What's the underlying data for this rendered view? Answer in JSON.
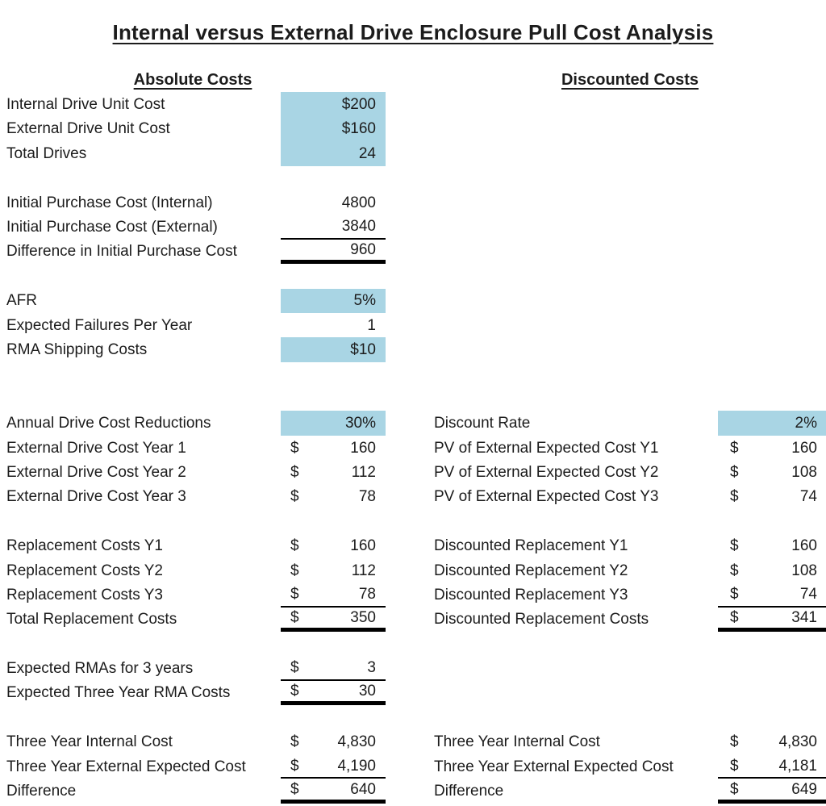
{
  "title": "Internal versus External Drive Enclosure Pull Cost Analysis",
  "sections": {
    "left_header": "Absolute Costs",
    "right_header": "Discounted Costs"
  },
  "currency_symbol": "$",
  "colors": {
    "highlight": "#a9d5e4",
    "border": "#000000",
    "text": "#1c1c1c",
    "background": "#ffffff"
  },
  "rows": [
    {
      "left": {
        "label": "Internal Drive Unit Cost",
        "value": "$200",
        "highlight": true
      }
    },
    {
      "left": {
        "label": "External Drive Unit Cost",
        "value": "$160",
        "highlight": true
      }
    },
    {
      "left": {
        "label": "Total Drives",
        "value": "24",
        "highlight": true
      }
    },
    {
      "blank": true
    },
    {
      "left": {
        "label": "Initial Purchase Cost (Internal)",
        "value": "4800"
      }
    },
    {
      "left": {
        "label": "Initial Purchase Cost (External)",
        "value": "3840",
        "border": "thin"
      }
    },
    {
      "left": {
        "label": "Difference in Initial Purchase Cost",
        "value": "960",
        "border": "thick"
      }
    },
    {
      "blank": true
    },
    {
      "left": {
        "label": "AFR",
        "value": "5%",
        "highlight": true
      }
    },
    {
      "left": {
        "label": "Expected Failures Per Year",
        "value": "1"
      }
    },
    {
      "left": {
        "label": "RMA Shipping Costs",
        "value": "$10",
        "highlight": true
      }
    },
    {
      "blank": true
    },
    {
      "blank": true
    },
    {
      "left": {
        "label": "Annual Drive Cost Reductions",
        "value": "30%",
        "highlight": true
      },
      "right": {
        "label": "Discount Rate",
        "value": "2%",
        "highlight": true
      }
    },
    {
      "left": {
        "label": "External Drive Cost Year 1",
        "value": "160",
        "dollar": true
      },
      "right": {
        "label": "PV of External Expected Cost Y1",
        "value": "160",
        "dollar": true
      }
    },
    {
      "left": {
        "label": "External Drive Cost Year 2",
        "value": "112",
        "dollar": true
      },
      "right": {
        "label": "PV of External Expected Cost Y2",
        "value": "108",
        "dollar": true
      }
    },
    {
      "left": {
        "label": "External Drive Cost Year 3",
        "value": "78",
        "dollar": true
      },
      "right": {
        "label": "PV of External Expected Cost Y3",
        "value": "74",
        "dollar": true
      }
    },
    {
      "blank": true
    },
    {
      "left": {
        "label": "Replacement Costs Y1",
        "value": "160",
        "dollar": true
      },
      "right": {
        "label": "Discounted Replacement Y1",
        "value": "160",
        "dollar": true
      }
    },
    {
      "left": {
        "label": "Replacement Costs Y2",
        "value": "112",
        "dollar": true
      },
      "right": {
        "label": "Discounted Replacement Y2",
        "value": "108",
        "dollar": true
      }
    },
    {
      "left": {
        "label": "Replacement Costs Y3",
        "value": "78",
        "dollar": true,
        "border": "thin"
      },
      "right": {
        "label": "Discounted Replacement Y3",
        "value": "74",
        "dollar": true,
        "border": "thin"
      }
    },
    {
      "left": {
        "label": "Total Replacement Costs",
        "value": "350",
        "dollar": true,
        "border": "thick"
      },
      "right": {
        "label": "Discounted Replacement Costs",
        "value": "341",
        "dollar": true,
        "border": "thick"
      }
    },
    {
      "blank": true
    },
    {
      "left": {
        "label": "Expected RMAs for 3 years",
        "value": "3",
        "dollar": true,
        "border": "thin"
      }
    },
    {
      "left": {
        "label": "Expected Three Year RMA Costs",
        "value": "30",
        "dollar": true,
        "border": "thick"
      }
    },
    {
      "blank": true
    },
    {
      "left": {
        "label": "Three Year Internal Cost",
        "value": "4,830",
        "dollar": true
      },
      "right": {
        "label": "Three Year Internal Cost",
        "value": "4,830",
        "dollar": true
      }
    },
    {
      "left": {
        "label": "Three Year External Expected Cost",
        "value": "4,190",
        "dollar": true,
        "border": "thin"
      },
      "right": {
        "label": "Three Year External Expected Cost",
        "value": "4,181",
        "dollar": true,
        "border": "thin"
      }
    },
    {
      "left": {
        "label": "Difference",
        "value": "640",
        "dollar": true,
        "border": "thick"
      },
      "right": {
        "label": "Difference",
        "value": "649",
        "dollar": true,
        "border": "thick"
      }
    }
  ]
}
